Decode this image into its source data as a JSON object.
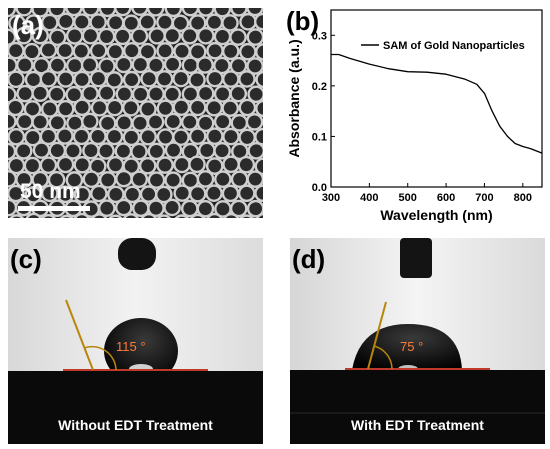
{
  "panels": {
    "a": {
      "label": "(a)",
      "scale_text": "50 nm"
    },
    "b": {
      "label": "(b)"
    },
    "c": {
      "label": "(c)",
      "angle": "115 °",
      "caption": "Without EDT Treatment"
    },
    "d": {
      "label": "(d)",
      "angle": "75 °",
      "caption": "With EDT Treatment"
    }
  },
  "chart_data": {
    "type": "line",
    "title": "",
    "xlabel": "Wavelength (nm)",
    "ylabel": "Absorbance (a.u.)",
    "xlim": [
      300,
      850
    ],
    "ylim": [
      0.0,
      0.35
    ],
    "xticks": [
      300,
      400,
      500,
      600,
      700,
      800
    ],
    "yticks": [
      0.0,
      0.1,
      0.2,
      0.3
    ],
    "ytick_labels": [
      "0.0",
      "0.1",
      "0.2",
      "0.3"
    ],
    "legend_position": "top-right",
    "series": [
      {
        "name": "SAM of Gold Nanoparticles",
        "color": "#000000",
        "x": [
          300,
          320,
          350,
          400,
          450,
          500,
          550,
          600,
          650,
          680,
          700,
          720,
          740,
          760,
          780,
          800,
          820,
          840,
          850
        ],
        "y": [
          0.262,
          0.262,
          0.254,
          0.243,
          0.234,
          0.228,
          0.227,
          0.223,
          0.213,
          0.203,
          0.185,
          0.15,
          0.12,
          0.1,
          0.086,
          0.08,
          0.076,
          0.07,
          0.067
        ]
      }
    ]
  }
}
